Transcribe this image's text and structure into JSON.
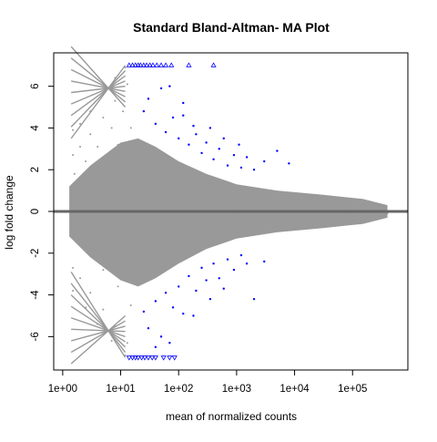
{
  "chart_data": {
    "type": "scatter",
    "title": "Standard Bland-Altman- MA Plot",
    "xlabel": "mean of normalized counts",
    "ylabel": "log fold change",
    "x_scale": "log10",
    "xlim": [
      0.7,
      900000
    ],
    "ylim": [
      -7.6,
      7.6
    ],
    "x_ticks": [
      {
        "value": 1,
        "label": "1e+00"
      },
      {
        "value": 10,
        "label": "1e+01"
      },
      {
        "value": 100,
        "label": "1e+02"
      },
      {
        "value": 1000,
        "label": "1e+03"
      },
      {
        "value": 10000,
        "label": "1e+04"
      },
      {
        "value": 100000,
        "label": "1e+05"
      }
    ],
    "y_ticks": [
      {
        "value": -6,
        "label": "-6"
      },
      {
        "value": -4,
        "label": "-4"
      },
      {
        "value": -2,
        "label": "-2"
      },
      {
        "value": 0,
        "label": "0"
      },
      {
        "value": 2,
        "label": "2"
      },
      {
        "value": 4,
        "label": "4"
      },
      {
        "value": 6,
        "label": "6"
      }
    ],
    "reference_line": {
      "y": 0,
      "color": "#666666"
    },
    "grid": false,
    "legend": "none",
    "colors": {
      "background_points": "#999999",
      "significant_points": "#0000ff"
    },
    "series": [
      {
        "role": "non-significant",
        "color": "#999999",
        "points": [
          {
            "x": 1.5,
            "y": 3.9
          },
          {
            "x": 2,
            "y": 4.2
          },
          {
            "x": 3,
            "y": 4.8
          },
          {
            "x": 5,
            "y": 5.6
          },
          {
            "x": 8,
            "y": 6.4
          },
          {
            "x": 12,
            "y": 6.9
          },
          {
            "x": 1.5,
            "y": 2.7
          },
          {
            "x": 2,
            "y": 3.1
          },
          {
            "x": 3,
            "y": 3.7
          },
          {
            "x": 5,
            "y": 4.5
          },
          {
            "x": 8,
            "y": 5.3
          },
          {
            "x": 13,
            "y": 6.1
          },
          {
            "x": 1.6,
            "y": 1.8
          },
          {
            "x": 2.5,
            "y": 2.4
          },
          {
            "x": 4,
            "y": 3.1
          },
          {
            "x": 7,
            "y": 4.0
          },
          {
            "x": 11,
            "y": 4.8
          },
          {
            "x": 2,
            "y": 1.0
          },
          {
            "x": 3,
            "y": 1.5
          },
          {
            "x": 5,
            "y": 2.3
          },
          {
            "x": 9,
            "y": 3.2
          },
          {
            "x": 15,
            "y": 4.0
          },
          {
            "x": 1.5,
            "y": -2.7
          },
          {
            "x": 2,
            "y": -3.2
          },
          {
            "x": 3,
            "y": -3.9
          },
          {
            "x": 5,
            "y": -4.7
          },
          {
            "x": 8,
            "y": -5.5
          },
          {
            "x": 13,
            "y": -6.3
          },
          {
            "x": 1.5,
            "y": -3.8
          },
          {
            "x": 2.5,
            "y": -4.6
          },
          {
            "x": 4,
            "y": -5.4
          },
          {
            "x": 7,
            "y": -6.2
          },
          {
            "x": 12,
            "y": -6.9
          },
          {
            "x": 2,
            "y": -1.4
          },
          {
            "x": 3,
            "y": -2.0
          },
          {
            "x": 5,
            "y": -2.8
          },
          {
            "x": 9,
            "y": -3.6
          },
          {
            "x": 15,
            "y": -4.5
          },
          {
            "x": 2,
            "y": 0.4
          },
          {
            "x": 3,
            "y": -0.6
          },
          {
            "x": 5,
            "y": 0.9
          },
          {
            "x": 8,
            "y": -1.1
          },
          {
            "x": 10,
            "y": 1.6
          },
          {
            "x": 15,
            "y": 2.8
          },
          {
            "x": 20,
            "y": -2.5
          },
          {
            "x": 30,
            "y": 2.2
          },
          {
            "x": 40,
            "y": -2.0
          },
          {
            "x": 60,
            "y": 1.8
          },
          {
            "x": 80,
            "y": -1.5
          },
          {
            "x": 120,
            "y": 1.3
          },
          {
            "x": 200,
            "y": -1.1
          },
          {
            "x": 300,
            "y": 0.9
          },
          {
            "x": 500,
            "y": -0.8
          },
          {
            "x": 800,
            "y": 0.7
          },
          {
            "x": 1500,
            "y": -0.6
          },
          {
            "x": 3000,
            "y": 0.5
          },
          {
            "x": 6000,
            "y": -0.5
          },
          {
            "x": 12000,
            "y": 0.4
          },
          {
            "x": 25000,
            "y": -0.3
          },
          {
            "x": 50000,
            "y": 0.3
          },
          {
            "x": 100000,
            "y": -0.2
          },
          {
            "x": 200000,
            "y": 0.2
          },
          {
            "x": 400000,
            "y": -0.1
          },
          {
            "x": 50,
            "y": 0.2
          },
          {
            "x": 150,
            "y": -0.3
          },
          {
            "x": 400,
            "y": 0.4
          },
          {
            "x": 1000,
            "y": -0.2
          },
          {
            "x": 20,
            "y": 0.6
          }
        ]
      },
      {
        "role": "significant",
        "color": "#0000ff",
        "points": [
          {
            "x": 25,
            "y": 4.8
          },
          {
            "x": 30,
            "y": 5.4
          },
          {
            "x": 40,
            "y": 4.2
          },
          {
            "x": 50,
            "y": 5.9
          },
          {
            "x": 60,
            "y": 3.8
          },
          {
            "x": 80,
            "y": 4.5
          },
          {
            "x": 100,
            "y": 3.5
          },
          {
            "x": 120,
            "y": 4.6
          },
          {
            "x": 150,
            "y": 3.2
          },
          {
            "x": 200,
            "y": 3.7
          },
          {
            "x": 250,
            "y": 2.8
          },
          {
            "x": 300,
            "y": 3.3
          },
          {
            "x": 400,
            "y": 2.5
          },
          {
            "x": 500,
            "y": 3.0
          },
          {
            "x": 700,
            "y": 2.2
          },
          {
            "x": 900,
            "y": 2.7
          },
          {
            "x": 1200,
            "y": 2.1
          },
          {
            "x": 1500,
            "y": 2.6
          },
          {
            "x": 2000,
            "y": 2.0
          },
          {
            "x": 3000,
            "y": 2.4
          },
          {
            "x": 5000,
            "y": 2.9
          },
          {
            "x": 8000,
            "y": 2.3
          },
          {
            "x": 120,
            "y": 5.2
          },
          {
            "x": 70,
            "y": 6.0
          },
          {
            "x": 180,
            "y": 4.1
          },
          {
            "x": 350,
            "y": 4.0
          },
          {
            "x": 600,
            "y": 3.5
          },
          {
            "x": 1100,
            "y": 3.2
          },
          {
            "x": 25,
            "y": -4.8
          },
          {
            "x": 30,
            "y": -5.6
          },
          {
            "x": 40,
            "y": -4.3
          },
          {
            "x": 50,
            "y": -6.0
          },
          {
            "x": 60,
            "y": -3.9
          },
          {
            "x": 80,
            "y": -4.6
          },
          {
            "x": 100,
            "y": -3.6
          },
          {
            "x": 120,
            "y": -4.9
          },
          {
            "x": 150,
            "y": -3.1
          },
          {
            "x": 200,
            "y": -3.8
          },
          {
            "x": 250,
            "y": -2.7
          },
          {
            "x": 300,
            "y": -3.3
          },
          {
            "x": 400,
            "y": -2.5
          },
          {
            "x": 500,
            "y": -3.2
          },
          {
            "x": 700,
            "y": -2.3
          },
          {
            "x": 900,
            "y": -2.8
          },
          {
            "x": 1200,
            "y": -2.1
          },
          {
            "x": 1500,
            "y": -2.5
          },
          {
            "x": 2000,
            "y": -4.2
          },
          {
            "x": 3000,
            "y": -2.4
          },
          {
            "x": 70,
            "y": -6.3
          },
          {
            "x": 180,
            "y": -5.0
          },
          {
            "x": 350,
            "y": -4.2
          },
          {
            "x": 600,
            "y": -3.7
          },
          {
            "x": 40,
            "y": -6.5
          }
        ]
      },
      {
        "role": "significant-clipped-top",
        "marker": "triangle-up",
        "color": "#0000ff",
        "points": [
          {
            "x": 14,
            "y": 7
          },
          {
            "x": 16,
            "y": 7
          },
          {
            "x": 18,
            "y": 7
          },
          {
            "x": 20,
            "y": 7
          },
          {
            "x": 22,
            "y": 7
          },
          {
            "x": 25,
            "y": 7
          },
          {
            "x": 28,
            "y": 7
          },
          {
            "x": 32,
            "y": 7
          },
          {
            "x": 36,
            "y": 7
          },
          {
            "x": 42,
            "y": 7
          },
          {
            "x": 50,
            "y": 7
          },
          {
            "x": 60,
            "y": 7
          },
          {
            "x": 75,
            "y": 7
          },
          {
            "x": 150,
            "y": 7
          },
          {
            "x": 400,
            "y": 7
          }
        ]
      },
      {
        "role": "significant-clipped-bottom",
        "marker": "triangle-down",
        "color": "#0000ff",
        "points": [
          {
            "x": 14,
            "y": -7
          },
          {
            "x": 16,
            "y": -7
          },
          {
            "x": 18,
            "y": -7
          },
          {
            "x": 20,
            "y": -7
          },
          {
            "x": 23,
            "y": -7
          },
          {
            "x": 26,
            "y": -7
          },
          {
            "x": 30,
            "y": -7
          },
          {
            "x": 35,
            "y": -7
          },
          {
            "x": 40,
            "y": -7
          },
          {
            "x": 55,
            "y": -7
          },
          {
            "x": 70,
            "y": -7
          },
          {
            "x": 85,
            "y": -7
          }
        ]
      }
    ]
  }
}
